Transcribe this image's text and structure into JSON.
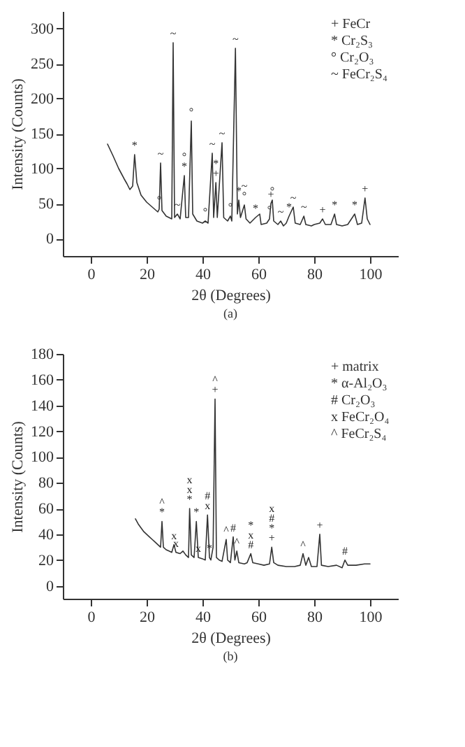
{
  "chart_data": [
    {
      "type": "line",
      "title": "(a)",
      "xlabel": "2θ (Degrees)",
      "ylabel": "Intensity (Counts)",
      "xlim": [
        -10,
        110
      ],
      "ylim": [
        -25,
        325
      ],
      "xticks": [
        0,
        20,
        40,
        60,
        80,
        100
      ],
      "yticks": [
        0,
        50,
        100,
        150,
        200,
        250,
        300
      ],
      "series": [
        {
          "color": "#333333",
          "x": [
            6,
            8,
            10,
            12,
            13,
            14,
            15,
            15.7,
            16.5,
            18,
            20,
            22,
            24,
            24.5,
            25,
            25.5,
            27,
            29,
            29.5,
            30,
            31,
            32,
            33.5,
            34,
            35,
            36,
            36.5,
            38,
            40,
            41,
            42,
            43.5,
            44,
            44.8,
            45.3,
            47,
            47.6,
            49,
            50,
            50.5,
            51.8,
            52.5,
            53,
            53.6,
            55,
            55.6,
            57,
            59,
            60.5,
            61,
            63,
            64,
            64.5,
            65,
            65.5,
            67,
            68,
            69,
            70,
            71,
            72.5,
            73.2,
            75,
            76.3,
            77,
            79,
            80,
            82,
            83,
            84,
            86,
            87.3,
            88,
            90,
            92,
            94.5,
            95.5,
            97,
            98.2,
            99,
            100
          ],
          "values": [
            135,
            118,
            100,
            85,
            78,
            70,
            75,
            120,
            80,
            62,
            52,
            45,
            38,
            42,
            108,
            40,
            32,
            28,
            280,
            30,
            35,
            28,
            90,
            30,
            30,
            168,
            35,
            25,
            22,
            25,
            22,
            122,
            30,
            80,
            30,
            137,
            30,
            25,
            32,
            25,
            272,
            35,
            55,
            30,
            48,
            28,
            22,
            30,
            35,
            20,
            22,
            28,
            50,
            55,
            25,
            20,
            25,
            18,
            22,
            32,
            45,
            22,
            20,
            32,
            20,
            18,
            20,
            22,
            28,
            20,
            20,
            35,
            20,
            18,
            20,
            35,
            20,
            22,
            58,
            28,
            20
          ]
        }
      ],
      "annotations": [
        "+ FeCr",
        "* Cr₂S₃",
        "° Cr₂O₃",
        "~ FeCr₂S₄",
        {
          "text": "*",
          "x": 15.7,
          "y": 120
        },
        {
          "text": "~",
          "x": 25,
          "y": 108
        },
        {
          "text": "°",
          "x": 24.5,
          "y": 42
        },
        {
          "text": "~",
          "x": 29.5,
          "y": 280
        },
        {
          "text": "~",
          "x": 31,
          "y": 35
        },
        {
          "text": "*",
          "x": 33.5,
          "y": 90
        },
        {
          "text": "°",
          "x": 33.5,
          "y": 90
        },
        {
          "text": "°",
          "x": 36,
          "y": 168
        },
        {
          "text": "°",
          "x": 41,
          "y": 25
        },
        {
          "text": "~",
          "x": 43.5,
          "y": 122
        },
        {
          "text": "+",
          "x": 44.8,
          "y": 80
        },
        {
          "text": "*",
          "x": 44.8,
          "y": 80
        },
        {
          "text": "~",
          "x": 47,
          "y": 137
        },
        {
          "text": "°",
          "x": 50,
          "y": 32
        },
        {
          "text": "~",
          "x": 51.8,
          "y": 272
        },
        {
          "text": "*",
          "x": 53,
          "y": 55
        },
        {
          "text": "°",
          "x": 55,
          "y": 48
        },
        {
          "text": "~",
          "x": 55,
          "y": 48
        },
        {
          "text": "*",
          "x": 59,
          "y": 30
        },
        {
          "text": "°",
          "x": 64,
          "y": 28
        },
        {
          "text": "+",
          "x": 64.5,
          "y": 50
        },
        {
          "text": "°",
          "x": 65,
          "y": 55
        },
        {
          "text": "~",
          "x": 68,
          "y": 25
        },
        {
          "text": "*",
          "x": 71,
          "y": 32
        },
        {
          "text": "~",
          "x": 72.5,
          "y": 45
        },
        {
          "text": "~",
          "x": 76.3,
          "y": 32
        },
        {
          "text": "+",
          "x": 83,
          "y": 28
        },
        {
          "text": "*",
          "x": 87.3,
          "y": 35
        },
        {
          "text": "*",
          "x": 94.5,
          "y": 35
        },
        {
          "text": "+",
          "x": 98.2,
          "y": 58
        }
      ]
    },
    {
      "type": "line",
      "title": "(b)",
      "xlabel": "2θ (Degrees)",
      "ylabel": "Intensity (Counts)",
      "xlim": [
        -10,
        110
      ],
      "ylim": [
        -10,
        180
      ],
      "xticks": [
        0,
        20,
        40,
        60,
        80,
        100
      ],
      "yticks": [
        0,
        20,
        40,
        60,
        80,
        100,
        120,
        140,
        160,
        180
      ],
      "series": [
        {
          "color": "#333333",
          "x": [
            16,
            17,
            18,
            19,
            20,
            21,
            22,
            23,
            24,
            25,
            25.5,
            26,
            27,
            28,
            29,
            29.8,
            30.5,
            32,
            33,
            34,
            35,
            35.4,
            36,
            37,
            37.8,
            38.5,
            40,
            41,
            41.8,
            42.5,
            43,
            43.8,
            44.5,
            45,
            46,
            47,
            48.5,
            49,
            50,
            51,
            51.6,
            52.3,
            53,
            55,
            56,
            57.3,
            58,
            60,
            62,
            64,
            64.8,
            65.5,
            67,
            70,
            73,
            75,
            76,
            77,
            78,
            79,
            81,
            82,
            82.6,
            85,
            88,
            90,
            91,
            92,
            95,
            98,
            100
          ],
          "values": [
            52,
            48,
            45,
            42,
            40,
            38,
            36,
            34,
            32,
            30,
            50,
            30,
            28,
            27,
            26,
            32,
            26,
            25,
            27,
            24,
            22,
            60,
            24,
            22,
            50,
            22,
            21,
            20,
            55,
            22,
            20,
            30,
            145,
            22,
            20,
            19,
            36,
            20,
            18,
            38,
            20,
            27,
            18,
            17,
            18,
            25,
            18,
            17,
            16,
            17,
            30,
            18,
            16,
            15,
            15,
            16,
            25,
            16,
            22,
            15,
            15,
            40,
            16,
            15,
            16,
            14,
            20,
            16,
            16,
            17,
            17
          ]
        }
      ],
      "annotations": [
        "+ matrix",
        "* α-Al₂O₃",
        "# Cr₂O₃",
        "x FeCr₂O₄",
        "^ FeCr₂S₄",
        {
          "text": "*",
          "x": 25.5,
          "y": 50
        },
        {
          "text": "^",
          "x": 25.5,
          "y": 50
        },
        {
          "text": "x",
          "x": 29.8,
          "y": 32
        },
        {
          "text": "x",
          "x": 30.5,
          "y": 26
        },
        {
          "text": "*",
          "x": 35.4,
          "y": 60
        },
        {
          "text": "x",
          "x": 35.4,
          "y": 60
        },
        {
          "text": "x",
          "x": 35.4,
          "y": 60
        },
        {
          "text": "*",
          "x": 37.8,
          "y": 50
        },
        {
          "text": "x",
          "x": 38.5,
          "y": 22
        },
        {
          "text": "x",
          "x": 41.8,
          "y": 55
        },
        {
          "text": "#",
          "x": 41.8,
          "y": 55
        },
        {
          "text": "*",
          "x": 42.5,
          "y": 22
        },
        {
          "text": "+",
          "x": 44.5,
          "y": 145
        },
        {
          "text": "^",
          "x": 44.5,
          "y": 145
        },
        {
          "text": "^",
          "x": 48.5,
          "y": 36
        },
        {
          "text": "#",
          "x": 51,
          "y": 38
        },
        {
          "text": "^",
          "x": 52.3,
          "y": 27
        },
        {
          "text": "#",
          "x": 57.3,
          "y": 25
        },
        {
          "text": "x",
          "x": 57.3,
          "y": 25
        },
        {
          "text": "*",
          "x": 57.3,
          "y": 25
        },
        {
          "text": "+",
          "x": 64.8,
          "y": 30
        },
        {
          "text": "*",
          "x": 64.8,
          "y": 30
        },
        {
          "text": "#",
          "x": 64.8,
          "y": 30
        },
        {
          "text": "x",
          "x": 64.8,
          "y": 30
        },
        {
          "text": "^",
          "x": 76,
          "y": 25
        },
        {
          "text": "+",
          "x": 82,
          "y": 40
        },
        {
          "text": "#",
          "x": 91,
          "y": 20
        }
      ]
    }
  ]
}
